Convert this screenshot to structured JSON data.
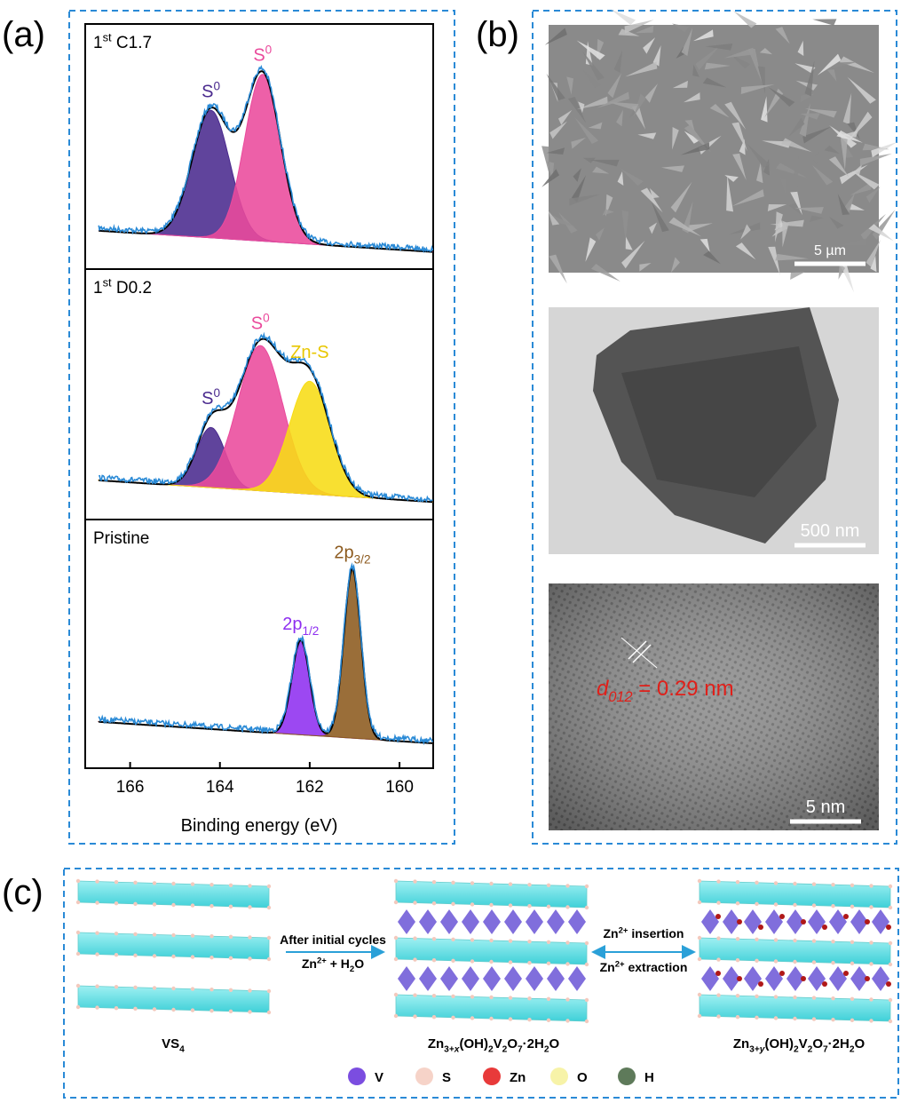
{
  "panel_a": {
    "label": "(a)",
    "xlabel": "Binding energy (eV)",
    "xlim": [
      167,
      159.25
    ],
    "xticks": [
      166,
      164,
      162,
      160
    ],
    "spectra": [
      {
        "label": [
          {
            "t": "1"
          },
          {
            "t": "st",
            "s": "sup"
          },
          {
            "t": " C1.7"
          }
        ],
        "peaks": [
          {
            "label": [
              {
                "t": "S"
              },
              {
                "t": "0",
                "s": "sup"
              }
            ],
            "center": 164.2,
            "height": 0.52,
            "width": 0.42,
            "color": "#4a2a8e"
          },
          {
            "label": [
              {
                "t": "S"
              },
              {
                "t": "0",
                "s": "sup"
              }
            ],
            "center": 163.05,
            "height": 0.68,
            "width": 0.4,
            "color": "#ea4a9c"
          }
        ]
      },
      {
        "label": [
          {
            "t": "1"
          },
          {
            "t": "st",
            "s": "sup"
          },
          {
            "t": " D0.2"
          }
        ],
        "peaks": [
          {
            "label": [
              {
                "t": "S"
              },
              {
                "t": "0",
                "s": "sup"
              }
            ],
            "center": 164.2,
            "height": 0.24,
            "width": 0.32,
            "color": "#4a2a8e"
          },
          {
            "label": [
              {
                "t": "S"
              },
              {
                "t": "0",
                "s": "sup"
              }
            ],
            "center": 163.1,
            "height": 0.58,
            "width": 0.5,
            "color": "#ea4a9c"
          },
          {
            "label": [
              {
                "t": "Zn-S"
              }
            ],
            "center": 162.0,
            "height": 0.45,
            "width": 0.45,
            "color": "#f7dc14"
          }
        ]
      },
      {
        "label": [
          {
            "t": "Pristine"
          }
        ],
        "peaks": [
          {
            "label": [
              {
                "t": "2p"
              },
              {
                "t": "1/2",
                "s": "sub"
              }
            ],
            "center": 162.2,
            "height": 0.38,
            "width": 0.2,
            "color": "#8e2ff0"
          },
          {
            "label": [
              {
                "t": "2p"
              },
              {
                "t": "3/2",
                "s": "sub"
              }
            ],
            "center": 161.05,
            "height": 0.68,
            "width": 0.19,
            "color": "#8c5a1e"
          }
        ]
      }
    ]
  },
  "panel_b": {
    "label": "(b)",
    "images": [
      {
        "scale_bar": "5 µm"
      },
      {
        "scale_bar": "500 nm"
      },
      {
        "scale_bar": "5 nm",
        "annotation": [
          {
            "t": "d",
            "s": "i"
          },
          {
            "t": "012",
            "s": "subi"
          },
          {
            "t": " = 0.29 nm"
          }
        ]
      }
    ]
  },
  "panel_c": {
    "label": "(c)",
    "structures": [
      [
        {
          "t": "VS"
        },
        {
          "t": "4",
          "s": "sub"
        }
      ],
      [
        {
          "t": "Zn"
        },
        {
          "t": "3+",
          "s": "sub"
        },
        {
          "t": "x",
          "s": "subi"
        },
        {
          "t": "(OH)"
        },
        {
          "t": "2",
          "s": "sub"
        },
        {
          "t": "V"
        },
        {
          "t": "2",
          "s": "sub"
        },
        {
          "t": "O"
        },
        {
          "t": "7",
          "s": "sub"
        },
        {
          "t": "·2H"
        },
        {
          "t": "2",
          "s": "sub"
        },
        {
          "t": "O"
        }
      ],
      [
        {
          "t": "Zn"
        },
        {
          "t": "3+",
          "s": "sub"
        },
        {
          "t": "y",
          "s": "subi"
        },
        {
          "t": "(OH)"
        },
        {
          "t": "2",
          "s": "sub"
        },
        {
          "t": "V"
        },
        {
          "t": "2",
          "s": "sub"
        },
        {
          "t": "O"
        },
        {
          "t": "7",
          "s": "sub"
        },
        {
          "t": "·2H"
        },
        {
          "t": "2",
          "s": "sub"
        },
        {
          "t": "O"
        }
      ]
    ],
    "arrow1_top": [
      {
        "t": "After initial cycles"
      }
    ],
    "arrow1_bottom": [
      {
        "t": "Zn"
      },
      {
        "t": "2+",
        "s": "sup"
      },
      {
        "t": " + H"
      },
      {
        "t": "2",
        "s": "sub"
      },
      {
        "t": "O"
      }
    ],
    "arrow2_top": [
      {
        "t": "Zn"
      },
      {
        "t": "2+",
        "s": "sup"
      },
      {
        "t": " insertion"
      }
    ],
    "arrow2_bottom": [
      {
        "t": "Zn"
      },
      {
        "t": "2+",
        "s": "sup"
      },
      {
        "t": " extraction"
      }
    ],
    "legend": [
      {
        "name": "V",
        "color": "#7b4de0"
      },
      {
        "name": "S",
        "color": "#f6d3c8"
      },
      {
        "name": "Zn",
        "color": "#e83a3a"
      },
      {
        "name": "O",
        "color": "#f7f3a8"
      },
      {
        "name": "H",
        "color": "#5e7a5a"
      }
    ]
  }
}
